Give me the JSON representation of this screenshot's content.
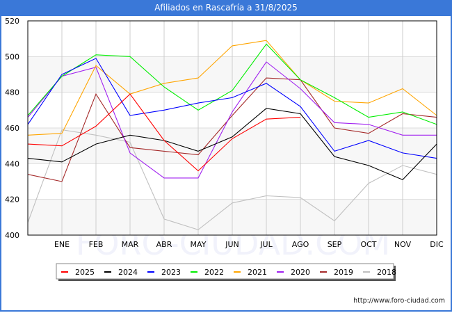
{
  "header": {
    "title": "Afiliados en Rascafría a 31/8/2025"
  },
  "footer": {
    "url": "http://www.foro-ciudad.com"
  },
  "watermark": "FORO-CIUDAD.COM",
  "chart_data": {
    "type": "line",
    "title": "Afiliados en Rascafría a 31/8/2025",
    "xlabel": "",
    "ylabel": "",
    "categories": [
      "",
      "ENE",
      "FEB",
      "MAR",
      "ABR",
      "MAY",
      "JUN",
      "JUL",
      "AGO",
      "SEP",
      "OCT",
      "NOV",
      "DIC"
    ],
    "ylim": [
      400,
      520
    ],
    "yticks": [
      400,
      420,
      440,
      460,
      480,
      500,
      520
    ],
    "grid": true,
    "legend_position": "bottom",
    "series": [
      {
        "name": "2025",
        "color": "#ff0000",
        "values": [
          451,
          450,
          461,
          479,
          453,
          436,
          454,
          465,
          466,
          null,
          null,
          null,
          null
        ]
      },
      {
        "name": "2024",
        "color": "#000000",
        "values": [
          443,
          441,
          451,
          456,
          453,
          447,
          455,
          471,
          468,
          444,
          439,
          431,
          451
        ]
      },
      {
        "name": "2023",
        "color": "#0000ff",
        "values": [
          462,
          490,
          499,
          467,
          470,
          474,
          477,
          485,
          472,
          447,
          453,
          446,
          443
        ]
      },
      {
        "name": "2022",
        "color": "#00ee00",
        "values": [
          467,
          489,
          501,
          500,
          483,
          470,
          481,
          507,
          487,
          477,
          466,
          469,
          462
        ]
      },
      {
        "name": "2021",
        "color": "#ffa500",
        "values": [
          456,
          457,
          495,
          479,
          485,
          488,
          506,
          509,
          487,
          475,
          474,
          482,
          467
        ]
      },
      {
        "name": "2020",
        "color": "#a020f0",
        "values": [
          466,
          489,
          494,
          446,
          432,
          432,
          469,
          497,
          482,
          463,
          462,
          456,
          456
        ]
      },
      {
        "name": "2019",
        "color": "#a52a2a",
        "values": [
          434,
          430,
          479,
          449,
          447,
          445,
          467,
          488,
          487,
          460,
          457,
          468,
          466
        ]
      },
      {
        "name": "2018",
        "color": "#c0c0c0",
        "values": [
          407,
          459,
          456,
          452,
          409,
          403,
          418,
          422,
          421,
          408,
          429,
          439,
          434
        ]
      }
    ]
  }
}
